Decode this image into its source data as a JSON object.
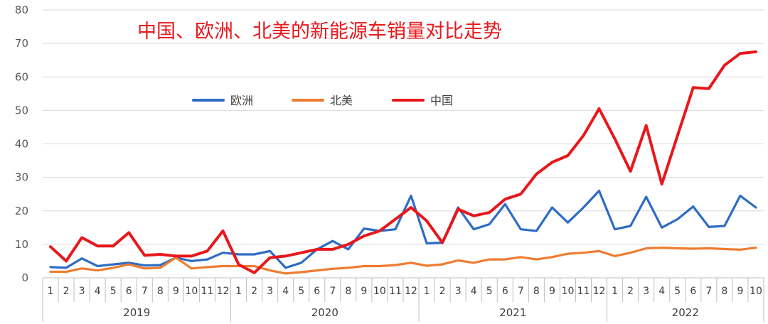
{
  "chart_data": {
    "type": "line",
    "title": "中国、欧洲、北美的新能源车销量对比走势",
    "ylim": [
      0,
      80
    ],
    "yticks": [
      0,
      10,
      20,
      30,
      40,
      50,
      60,
      70,
      80
    ],
    "grid": true,
    "legend_position": "upper-left",
    "month_labels": [
      "1",
      "2",
      "3",
      "4",
      "5",
      "6",
      "7",
      "8",
      "9",
      "10",
      "11",
      "12",
      "1",
      "2",
      "3",
      "4",
      "5",
      "6",
      "7",
      "8",
      "9",
      "10",
      "11",
      "12",
      "1",
      "2",
      "3",
      "4",
      "5",
      "6",
      "7",
      "8",
      "9",
      "10",
      "11",
      "12",
      "1",
      "2",
      "3",
      "4",
      "5",
      "6",
      "7",
      "8",
      "9",
      "10"
    ],
    "years": [
      {
        "label": "2019",
        "months": 12
      },
      {
        "label": "2020",
        "months": 12
      },
      {
        "label": "2021",
        "months": 12
      },
      {
        "label": "2022",
        "months": 10
      }
    ],
    "series": [
      {
        "name": "欧洲",
        "color": "#2e6cc4",
        "values": [
          3.2,
          3.0,
          5.8,
          3.5,
          4.0,
          4.5,
          3.7,
          3.8,
          6.0,
          5.0,
          5.5,
          7.5,
          7.0,
          7.0,
          8.0,
          3.0,
          4.5,
          8.5,
          11.0,
          8.5,
          14.7,
          14.0,
          14.5,
          24.5,
          10.3,
          10.5,
          21.0,
          14.5,
          16.0,
          22.0,
          14.5,
          14.0,
          21.0,
          16.5,
          21.0,
          26.0,
          14.5,
          15.5,
          24.2,
          15.0,
          17.5,
          21.3,
          15.2,
          15.5,
          24.5,
          21.0
        ]
      },
      {
        "name": "北美",
        "color": "#ed7d31",
        "values": [
          1.8,
          1.8,
          2.8,
          2.2,
          3.0,
          4.0,
          2.8,
          3.0,
          6.0,
          2.8,
          3.2,
          3.5,
          3.5,
          3.5,
          2.2,
          1.3,
          1.7,
          2.2,
          2.7,
          3.0,
          3.5,
          3.5,
          3.8,
          4.5,
          3.6,
          4.0,
          5.2,
          4.5,
          5.5,
          5.5,
          6.2,
          5.5,
          6.2,
          7.2,
          7.5,
          8.0,
          6.5,
          7.5,
          8.8,
          9.0,
          8.8,
          8.7,
          8.8,
          8.6,
          8.4,
          9.0
        ]
      },
      {
        "name": "中国",
        "color": "#e8171b",
        "values": [
          9.3,
          5.0,
          12.0,
          9.5,
          9.5,
          13.5,
          6.7,
          7.0,
          6.5,
          6.5,
          8.0,
          14.0,
          4.0,
          1.5,
          6.0,
          6.5,
          7.5,
          8.5,
          8.5,
          10.0,
          12.5,
          14.0,
          17.5,
          21.0,
          17.0,
          10.5,
          20.5,
          18.5,
          19.5,
          23.5,
          25.0,
          31.0,
          34.5,
          36.5,
          42.5,
          50.5,
          41.5,
          31.8,
          45.5,
          28.0,
          42.5,
          56.8,
          56.5,
          63.5,
          67.0,
          67.5
        ]
      }
    ]
  }
}
